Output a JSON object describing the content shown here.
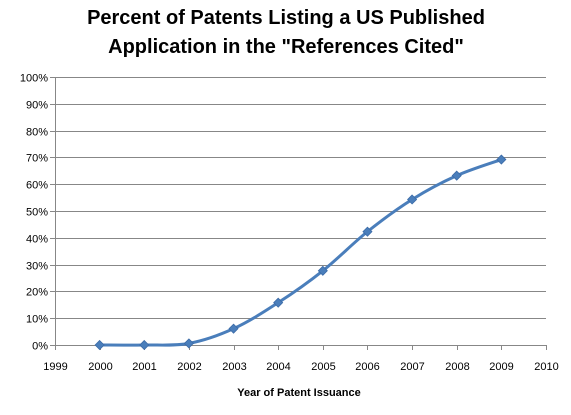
{
  "chart_data": {
    "type": "line",
    "title_lines": [
      "Percent of Patents Listing a US Published",
      "Application in the \"References Cited\""
    ],
    "xlabel": "Year of Patent Issuance",
    "ylabel": "",
    "x": [
      2000,
      2001,
      2002,
      2003,
      2004,
      2005,
      2006,
      2007,
      2008,
      2009
    ],
    "series": [
      {
        "values": [
          0,
          0,
          0.6,
          6.1,
          15.8,
          27.7,
          42.3,
          54.3,
          63.2,
          69.2
        ]
      }
    ],
    "xlim": [
      1999,
      2010
    ],
    "ylim": [
      0,
      100
    ],
    "x_ticks": [
      "1999",
      "2000",
      "2001",
      "2002",
      "2003",
      "2004",
      "2005",
      "2006",
      "2007",
      "2008",
      "2009",
      "2010"
    ],
    "y_ticks": [
      "0%",
      "10%",
      "20%",
      "30%",
      "40%",
      "50%",
      "60%",
      "70%",
      "80%",
      "90%",
      "100%"
    ],
    "y_unit": "%",
    "grid": true,
    "smoothed": true,
    "marker": "diamond",
    "line_color": "#4a7ebb",
    "legend": "none"
  }
}
